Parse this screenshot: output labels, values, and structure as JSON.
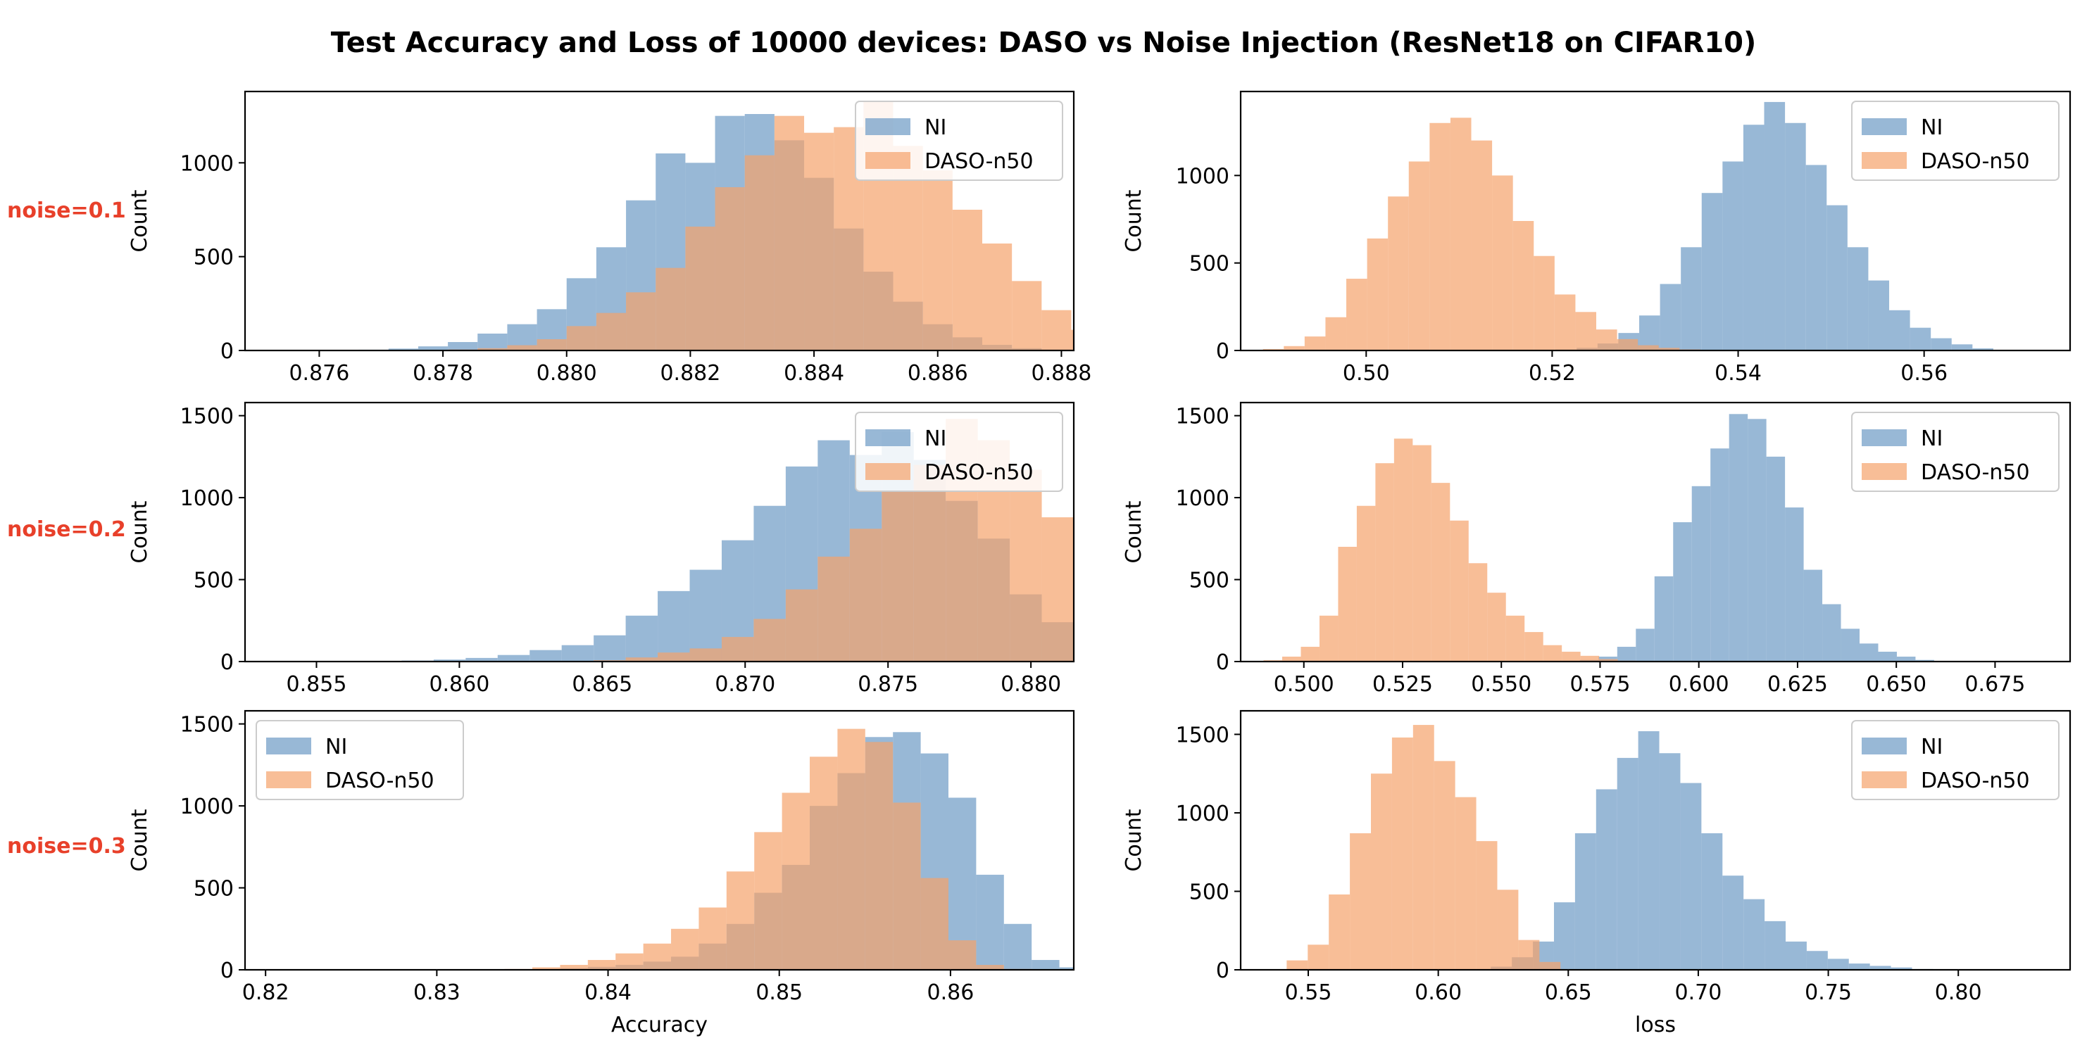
{
  "title": "Test Accuracy and Loss of 10000 devices: DASO vs Noise Injection (ResNet18 on CIFAR10)",
  "row_labels": [
    "noise=0.1",
    "noise=0.2",
    "noise=0.3"
  ],
  "colors": {
    "NI": "#7ea6cc",
    "DASO-n50": "#f5a36b",
    "overlap": "#c0a086",
    "row_label": "#e8402a"
  },
  "chart_data": [
    {
      "type": "bar",
      "row": 0,
      "col": 0,
      "ylabel": "Count",
      "xlabel": "",
      "xlim": [
        0.8748,
        0.8882
      ],
      "ylim": [
        0,
        1380
      ],
      "xticks": [
        0.876,
        0.878,
        0.88,
        0.882,
        0.884,
        0.886,
        0.888
      ],
      "xtick_decimals": 3,
      "yticks": [
        0,
        500,
        1000
      ],
      "legend": "top-right",
      "series": [
        {
          "name": "NI",
          "start": 0.8752,
          "width": 0.00048,
          "values": [
            0,
            0,
            2,
            4,
            10,
            22,
            45,
            90,
            140,
            220,
            385,
            550,
            800,
            1050,
            1000,
            1250,
            1260,
            1120,
            920,
            650,
            420,
            260,
            140,
            70,
            30,
            12,
            5,
            2
          ]
        },
        {
          "name": "DASO-n50",
          "start": 0.8752,
          "width": 0.00048,
          "values": [
            0,
            0,
            0,
            0,
            0,
            2,
            5,
            12,
            28,
            60,
            130,
            200,
            310,
            440,
            660,
            870,
            1040,
            1250,
            1160,
            1190,
            1330,
            1090,
            960,
            750,
            570,
            370,
            215,
            110,
            40,
            12,
            3
          ]
        }
      ]
    },
    {
      "type": "bar",
      "row": 0,
      "col": 1,
      "ylabel": "Count",
      "xlabel": "",
      "xlim": [
        0.4865,
        0.5757
      ],
      "ylim": [
        0,
        1480
      ],
      "xticks": [
        0.5,
        0.52,
        0.54,
        0.56
      ],
      "xtick_decimals": 2,
      "yticks": [
        0,
        500,
        1000
      ],
      "legend": "top-right",
      "series": [
        {
          "name": "NI",
          "start": 0.5204,
          "width": 0.00224,
          "values": [
            5,
            15,
            40,
            100,
            200,
            380,
            590,
            900,
            1080,
            1290,
            1420,
            1300,
            1060,
            830,
            590,
            400,
            230,
            130,
            70,
            35,
            12,
            4
          ]
        },
        {
          "name": "DASO-n50",
          "start": 0.4889,
          "width": 0.00224,
          "values": [
            8,
            25,
            80,
            190,
            410,
            640,
            880,
            1080,
            1300,
            1330,
            1200,
            1000,
            740,
            540,
            320,
            220,
            120,
            65,
            30,
            15,
            6
          ]
        }
      ]
    },
    {
      "type": "bar",
      "row": 1,
      "col": 0,
      "ylabel": "Count",
      "xlabel": "",
      "xlim": [
        0.8525,
        0.8815
      ],
      "ylim": [
        0,
        1580
      ],
      "xticks": [
        0.855,
        0.86,
        0.865,
        0.87,
        0.875,
        0.88
      ],
      "xtick_decimals": 3,
      "yticks": [
        0,
        500,
        1000,
        1500
      ],
      "legend": "top-right",
      "series": [
        {
          "name": "NI",
          "start": 0.8535,
          "width": 0.00112,
          "values": [
            0,
            0,
            2,
            4,
            6,
            12,
            22,
            40,
            70,
            100,
            160,
            280,
            430,
            560,
            740,
            950,
            1190,
            1350,
            1260,
            1400,
            1230,
            980,
            750,
            410,
            240,
            100,
            30,
            8,
            2
          ]
        },
        {
          "name": "DASO-n50",
          "start": 0.8535,
          "width": 0.00112,
          "values": [
            0,
            0,
            0,
            0,
            0,
            0,
            0,
            0,
            0,
            0,
            8,
            25,
            55,
            80,
            150,
            260,
            440,
            640,
            810,
            1040,
            1200,
            1480,
            1350,
            1170,
            880,
            700,
            560,
            300,
            150,
            50,
            10
          ]
        }
      ]
    },
    {
      "type": "bar",
      "row": 1,
      "col": 1,
      "ylabel": "Count",
      "xlabel": "",
      "xlim": [
        0.484,
        0.694
      ],
      "ylim": [
        0,
        1580
      ],
      "xticks": [
        0.5,
        0.525,
        0.55,
        0.575,
        0.6,
        0.625,
        0.65,
        0.675
      ],
      "xtick_decimals": 3,
      "yticks": [
        0,
        500,
        1000,
        1500
      ],
      "legend": "top-right",
      "series": [
        {
          "name": "NI",
          "start": 0.5699,
          "width": 0.00472,
          "values": [
            10,
            30,
            90,
            200,
            520,
            850,
            1070,
            1300,
            1510,
            1480,
            1250,
            940,
            560,
            350,
            200,
            110,
            60,
            30,
            10
          ]
        },
        {
          "name": "DASO-n50",
          "start": 0.4898,
          "width": 0.00472,
          "values": [
            8,
            30,
            90,
            280,
            700,
            950,
            1210,
            1360,
            1320,
            1090,
            860,
            600,
            420,
            280,
            180,
            100,
            60,
            35,
            15,
            5
          ]
        }
      ]
    },
    {
      "type": "bar",
      "row": 2,
      "col": 0,
      "ylabel": "Count",
      "xlabel": "Accuracy",
      "xlim": [
        0.8188,
        0.8672
      ],
      "ylim": [
        0,
        1580
      ],
      "xticks": [
        0.82,
        0.83,
        0.84,
        0.85,
        0.86
      ],
      "xtick_decimals": 2,
      "yticks": [
        0,
        500,
        1000,
        1500
      ],
      "legend": "top-left",
      "series": [
        {
          "name": "NI",
          "start": 0.821,
          "width": 0.00162,
          "values": [
            0,
            0,
            0,
            0,
            0,
            0,
            0,
            0,
            2,
            5,
            10,
            18,
            30,
            50,
            80,
            160,
            280,
            470,
            640,
            1000,
            1200,
            1420,
            1450,
            1320,
            1050,
            580,
            280,
            60,
            15
          ]
        },
        {
          "name": "DASO-n50",
          "start": 0.821,
          "width": 0.00162,
          "values": [
            0,
            0,
            0,
            0,
            0,
            0,
            0,
            0,
            5,
            15,
            30,
            60,
            100,
            160,
            250,
            380,
            600,
            840,
            1080,
            1300,
            1470,
            1390,
            1020,
            560,
            180,
            30,
            5
          ]
        }
      ]
    },
    {
      "type": "bar",
      "row": 2,
      "col": 1,
      "ylabel": "Count",
      "xlabel": "loss",
      "xlim": [
        0.524,
        0.843
      ],
      "ylim": [
        0,
        1650
      ],
      "xticks": [
        0.55,
        0.6,
        0.65,
        0.7,
        0.75,
        0.8
      ],
      "xtick_decimals": 2,
      "yticks": [
        0,
        500,
        1000,
        1500
      ],
      "legend": "top-right",
      "series": [
        {
          "name": "NI",
          "start": 0.6202,
          "width": 0.0081,
          "values": [
            20,
            80,
            180,
            430,
            870,
            1150,
            1350,
            1520,
            1380,
            1190,
            870,
            600,
            450,
            310,
            180,
            120,
            70,
            40,
            25,
            15,
            5
          ]
        },
        {
          "name": "DASO-n50",
          "start": 0.5417,
          "width": 0.0081,
          "values": [
            60,
            160,
            480,
            870,
            1250,
            1480,
            1560,
            1330,
            1100,
            820,
            510,
            190,
            50
          ]
        }
      ]
    }
  ]
}
